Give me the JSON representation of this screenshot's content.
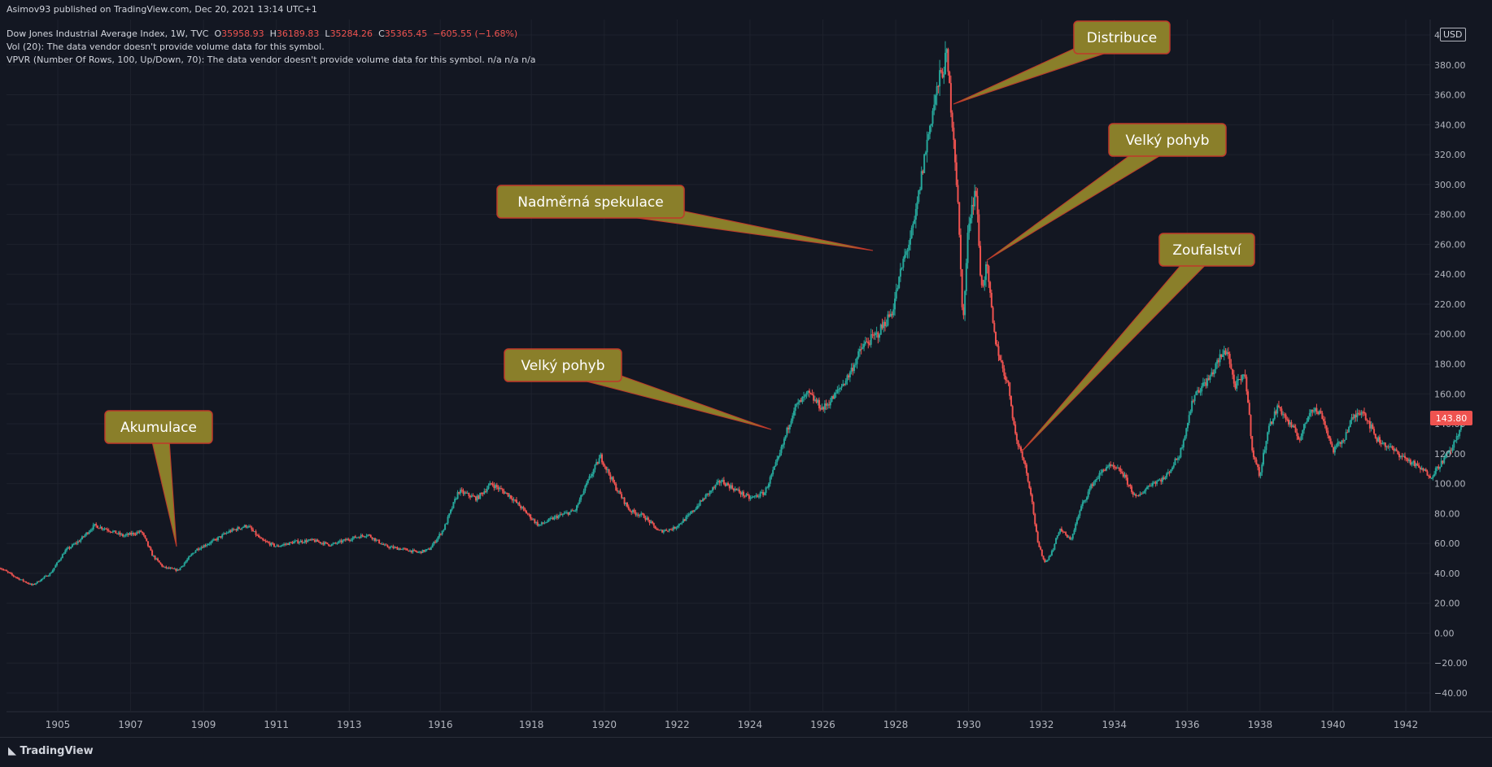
{
  "header": {
    "publisher": "Asimov93 published on TradingView.com, Dec 20, 2021 13:14 UTC+1",
    "symbol": "Dow Jones Industrial Average Index, 1W, TVC",
    "o_label": "O",
    "o_value": "35958.93",
    "h_label": "H",
    "h_value": "36189.83",
    "l_label": "L",
    "l_value": "35284.26",
    "c_label": "C",
    "c_value": "35365.45",
    "change": "−605.55 (−1.68%)",
    "vol_line": "Vol (20): The data vendor doesn't provide volume data for this symbol.",
    "vpvr_line": "VPVR (Number Of Rows, 100, Up/Down, 70): The data vendor doesn't provide volume data for this symbol.  n/a  n/a  n/a"
  },
  "currency": "USD",
  "footer": {
    "brand": "TradingView",
    "logo_icon": "tradingview-logo-icon"
  },
  "colors": {
    "background": "#131722",
    "up": "#26a69a",
    "down": "#ef5350",
    "callout": "#8a7f2a",
    "callout_border": "#c0392b",
    "price_tag": "#ef5350"
  },
  "chart_data": {
    "type": "line",
    "title": "Dow Jones Industrial Average Index, 1W, TVC",
    "ylim": [
      -45,
      400
    ],
    "y_ticks": [
      "400.00",
      "380.00",
      "360.00",
      "340.00",
      "320.00",
      "300.00",
      "280.00",
      "260.00",
      "240.00",
      "220.00",
      "200.00",
      "180.00",
      "160.00",
      "140.00",
      "120.00",
      "100.00",
      "80.00",
      "60.00",
      "40.00",
      "20.00",
      "0.00",
      "−20.00",
      "−40.00"
    ],
    "y_tick_values": [
      400,
      380,
      360,
      340,
      320,
      300,
      280,
      260,
      240,
      220,
      200,
      180,
      160,
      140,
      120,
      100,
      80,
      60,
      40,
      20,
      0,
      -20,
      -40
    ],
    "x_ticks": [
      "1905",
      "1907",
      "1909",
      "1911",
      "1913",
      "1916",
      "1918",
      "1920",
      "1922",
      "1924",
      "1926",
      "1928",
      "1930",
      "1932",
      "1934",
      "1936",
      "1938",
      "1940",
      "1942"
    ],
    "x_tick_values": [
      1905,
      1907,
      1909,
      1911,
      1913,
      1915.5,
      1918,
      1920,
      1922,
      1924,
      1926,
      1928,
      1930,
      1932,
      1934,
      1936,
      1938,
      1940,
      1942
    ],
    "xlim": [
      1903.4,
      1943.6
    ],
    "last_price": "143.80",
    "last_value": 143.8,
    "series": [
      {
        "x": [
          1903.4,
          1903.8,
          1904.3,
          1904.8,
          1905.2,
          1905.6,
          1906.0,
          1906.3,
          1906.8,
          1907.3,
          1907.6,
          1907.9,
          1908.3,
          1908.8,
          1909.3,
          1909.7,
          1910.2,
          1910.6,
          1911.0,
          1911.5,
          1912.0,
          1912.5,
          1913.0,
          1913.5,
          1914.0,
          1914.5,
          1914.9,
          1915.2,
          1915.6,
          1916.0,
          1916.5,
          1916.9,
          1917.4,
          1917.8,
          1918.2,
          1918.7,
          1919.2,
          1919.6,
          1919.9,
          1920.3,
          1920.7,
          1921.1,
          1921.5,
          1921.9,
          1922.3,
          1922.8,
          1923.2,
          1923.6,
          1924.0,
          1924.4,
          1924.8,
          1925.2,
          1925.6,
          1926.0,
          1926.3,
          1926.7,
          1927.1,
          1927.5,
          1927.9,
          1928.2,
          1928.5,
          1928.8,
          1929.0,
          1929.2,
          1929.4,
          1929.6,
          1929.7,
          1929.85,
          1930.0,
          1930.2,
          1930.35,
          1930.5,
          1930.7,
          1930.9,
          1931.1,
          1931.3,
          1931.5,
          1931.7,
          1931.9,
          1932.1,
          1932.3,
          1932.5,
          1932.8,
          1933.1,
          1933.4,
          1933.8,
          1934.2,
          1934.6,
          1935.0,
          1935.4,
          1935.8,
          1936.2,
          1936.6,
          1936.9,
          1937.1,
          1937.3,
          1937.6,
          1937.8,
          1938.0,
          1938.2,
          1938.5,
          1938.8,
          1939.1,
          1939.4,
          1939.7,
          1940.0,
          1940.3,
          1940.5,
          1940.8,
          1941.2,
          1941.5,
          1941.8,
          1942.1,
          1942.4,
          1942.7,
          1943.0,
          1943.3,
          1943.6
        ],
        "values": [
          44,
          38,
          32,
          40,
          55,
          62,
          72,
          70,
          65,
          68,
          52,
          44,
          42,
          56,
          62,
          68,
          72,
          62,
          58,
          61,
          62,
          59,
          63,
          66,
          58,
          56,
          54,
          56,
          70,
          95,
          90,
          100,
          92,
          82,
          72,
          78,
          82,
          104,
          118,
          98,
          82,
          78,
          68,
          70,
          78,
          92,
          102,
          96,
          90,
          94,
          118,
          150,
          160,
          150,
          158,
          172,
          192,
          200,
          215,
          248,
          272,
          320,
          348,
          370,
          385,
          330,
          290,
          206,
          275,
          298,
          230,
          245,
          200,
          180,
          165,
          130,
          118,
          95,
          60,
          47,
          55,
          70,
          62,
          85,
          100,
          112,
          108,
          90,
          100,
          104,
          120,
          160,
          170,
          184,
          190,
          165,
          172,
          120,
          105,
          135,
          152,
          140,
          130,
          151,
          146,
          122,
          130,
          142,
          150,
          130,
          125,
          120,
          115,
          110,
          105,
          115,
          125,
          143.8
        ]
      }
    ],
    "annotations": [
      {
        "text": "Distribuce"
      },
      {
        "text": "Velký pohyb"
      },
      {
        "text": "Nadměrná spekulace"
      },
      {
        "text": "Zoufalství"
      },
      {
        "text": "Velký pohyb"
      },
      {
        "text": "Akumulace"
      }
    ]
  }
}
